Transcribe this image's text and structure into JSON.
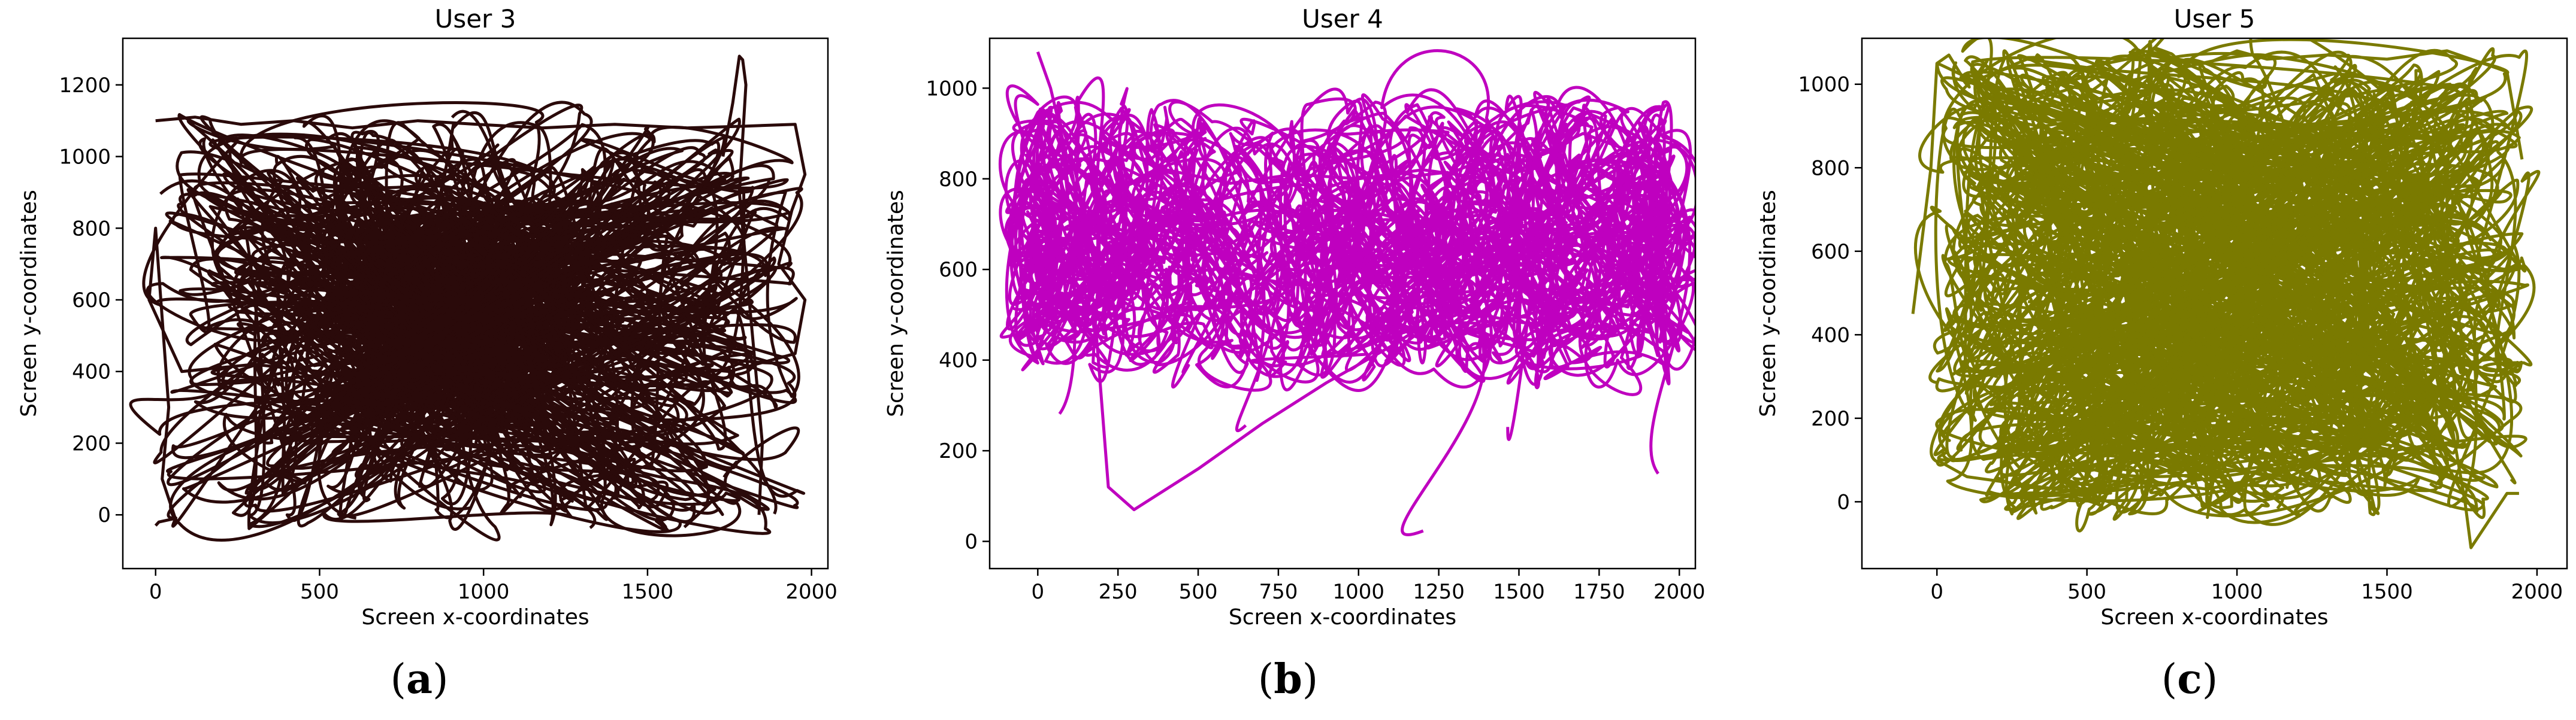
{
  "chart_data": [
    {
      "type": "line",
      "title": "User 3",
      "xlabel": "Screen x-coordinates",
      "ylabel": "Screen y-coordinates",
      "xlim": [
        -100,
        2050
      ],
      "ylim": [
        -150,
        1330
      ],
      "xticks": [
        0,
        500,
        1000,
        1500,
        2000
      ],
      "yticks": [
        0,
        200,
        400,
        600,
        800,
        1000,
        1200
      ],
      "grid": false,
      "color": "#2a0a0a",
      "panel_label": {
        "open": "(",
        "letter": "a",
        "close": ")"
      },
      "series": [
        {
          "x": [
            0,
            120,
            260,
            420,
            600,
            800,
            980,
            1180,
            1400,
            1620,
            1800,
            1950,
            1980,
            1940,
            1900,
            1980,
            1950,
            1750,
            1500,
            1200,
            900,
            600,
            300,
            80,
            -20,
            0,
            40,
            20,
            60,
            10,
            0
          ],
          "y": [
            1100,
            1110,
            1090,
            1100,
            1080,
            1100,
            1090,
            1080,
            1090,
            1080,
            1085,
            1090,
            950,
            850,
            700,
            600,
            450,
            400,
            420,
            380,
            410,
            390,
            420,
            400,
            600,
            800,
            300,
            100,
            -10,
            -20,
            -30
          ]
        },
        {
          "x": [
            1730,
            1760,
            1780,
            1790,
            1800,
            1780,
            1800,
            1830,
            1850,
            1840
          ],
          "y": [
            1000,
            1150,
            1280,
            1270,
            1200,
            900,
            700,
            400,
            200,
            0
          ]
        }
      ]
    },
    {
      "type": "line",
      "title": "User 4",
      "xlabel": "Screen x-coordinates",
      "ylabel": "Screen y-coordinates",
      "xlim": [
        -150,
        2050
      ],
      "ylim": [
        -60,
        1110
      ],
      "xticks": [
        0,
        250,
        500,
        750,
        1000,
        1250,
        1500,
        1750,
        2000
      ],
      "yticks": [
        0,
        200,
        400,
        600,
        800,
        1000
      ],
      "grid": false,
      "color": "#bf00bf",
      "panel_label": {
        "open": "(",
        "letter": "b",
        "close": ")"
      },
      "series": [
        {
          "x": [
            0,
            40,
            90,
            160,
            260,
            400,
            600,
            800,
            1000,
            1200,
            1400,
            1580,
            1700,
            1850,
            1930
          ],
          "y": [
            1080,
            1000,
            850,
            800,
            780,
            820,
            790,
            810,
            800,
            820,
            800,
            860,
            900,
            860,
            800
          ]
        },
        {
          "x": [
            100,
            180,
            220,
            300,
            500,
            700,
            900,
            1100,
            1300,
            1500,
            1700,
            1900,
            1940
          ],
          "y": [
            520,
            480,
            120,
            70,
            160,
            260,
            350,
            430,
            520,
            580,
            620,
            650,
            500
          ]
        }
      ]
    },
    {
      "type": "line",
      "title": "User 5",
      "xlabel": "Screen x-coordinates",
      "ylabel": "Screen y-coordinates",
      "xlim": [
        -250,
        2100
      ],
      "ylim": [
        -160,
        1110
      ],
      "xticks": [
        0,
        500,
        1000,
        1500,
        2000
      ],
      "yticks": [
        0,
        200,
        400,
        600,
        800,
        1000
      ],
      "grid": false,
      "color": "#7a7a00",
      "panel_label": {
        "open": "(",
        "letter": "c",
        "close": ")"
      },
      "series": [
        {
          "x": [
            -80,
            -20,
            0,
            40,
            100,
            300,
            500,
            700,
            900,
            1000,
            1100,
            1300,
            1500,
            1700,
            1900,
            1950
          ],
          "y": [
            450,
            800,
            1050,
            1070,
            1000,
            1060,
            1040,
            1070,
            1050,
            1080,
            1060,
            1070,
            1060,
            1080,
            1030,
            820
          ]
        },
        {
          "x": [
            0,
            100,
            300,
            500,
            700,
            900,
            1100,
            1300,
            1500,
            1600,
            1700,
            1760,
            1780,
            1900,
            1940
          ],
          "y": [
            100,
            60,
            40,
            20,
            50,
            30,
            60,
            100,
            200,
            300,
            250,
            0,
            -110,
            20,
            20
          ]
        }
      ]
    }
  ]
}
